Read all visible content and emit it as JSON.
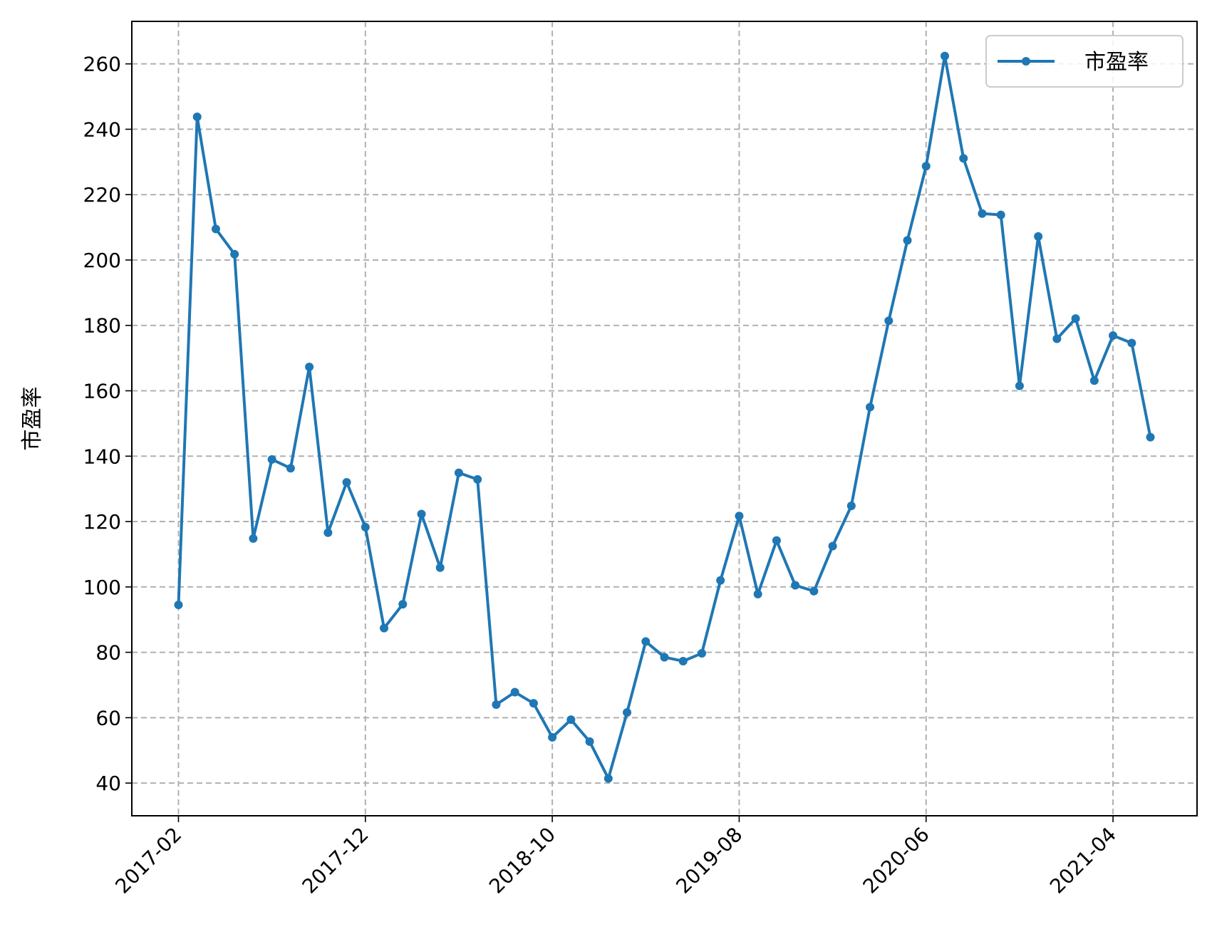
{
  "chart_data": {
    "type": "line",
    "title": "",
    "xlabel": "",
    "ylabel": "市盈率",
    "ylim": [
      30,
      273
    ],
    "yticks": [
      40,
      60,
      80,
      100,
      120,
      140,
      160,
      180,
      200,
      220,
      240,
      260
    ],
    "xtick_labels": [
      "2017-02",
      "2017-12",
      "2018-10",
      "2019-08",
      "2020-06",
      "2021-04"
    ],
    "xtick_months": [
      "2017-02",
      "2017-12",
      "2018-10",
      "2019-08",
      "2020-06",
      "2021-04"
    ],
    "grid": true,
    "legend": {
      "position": "top-right"
    },
    "colors": {
      "series": "#1f77b4",
      "grid": "#b0b0b0",
      "axis": "#000000"
    },
    "categories": [
      "2017-02",
      "2017-03",
      "2017-04",
      "2017-05",
      "2017-06",
      "2017-07",
      "2017-08",
      "2017-09",
      "2017-10",
      "2017-11",
      "2017-12",
      "2018-01",
      "2018-02",
      "2018-03",
      "2018-04",
      "2018-05",
      "2018-06",
      "2018-07",
      "2018-08",
      "2018-09",
      "2018-10",
      "2018-11",
      "2018-12",
      "2019-01",
      "2019-02",
      "2019-03",
      "2019-04",
      "2019-05",
      "2019-06",
      "2019-07",
      "2019-08",
      "2019-09",
      "2019-10",
      "2019-11",
      "2019-12",
      "2020-01",
      "2020-02",
      "2020-03",
      "2020-04",
      "2020-05",
      "2020-06",
      "2020-07",
      "2020-08",
      "2020-09",
      "2020-10",
      "2020-11",
      "2020-12",
      "2021-01",
      "2021-02",
      "2021-03",
      "2021-04",
      "2021-05",
      "2021-06"
    ],
    "series": [
      {
        "name": "市盈率",
        "values": [
          94.5,
          243.8,
          209.5,
          201.8,
          114.8,
          139.0,
          136.3,
          167.3,
          116.6,
          132.0,
          118.3,
          87.4,
          94.7,
          122.3,
          105.9,
          134.9,
          132.9,
          64.0,
          67.8,
          64.4,
          54.0,
          59.4,
          52.7,
          41.4,
          61.6,
          83.3,
          78.5,
          77.3,
          79.7,
          102.0,
          121.7,
          97.8,
          114.2,
          100.5,
          98.7,
          112.5,
          124.8,
          155.0,
          181.4,
          206.0,
          228.7,
          262.4,
          231.1,
          214.2,
          213.8,
          161.5,
          207.2,
          175.9,
          182.1,
          163.1,
          176.9,
          174.6,
          145.8
        ]
      }
    ]
  }
}
